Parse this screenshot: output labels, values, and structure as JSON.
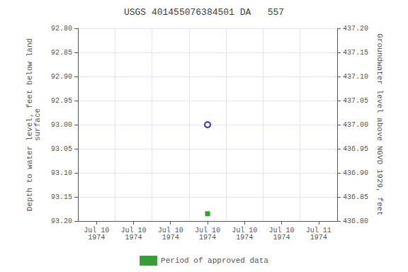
{
  "chart_data": {
    "type": "scatter",
    "title": "USGS 401455076384501 DA   557",
    "ylabel": "Depth to water level, feet below land\nsurface",
    "y2label": "Groundwater level above NGVD 1929, feet",
    "categories": [
      "Jul 10\n1974",
      "Jul 10\n1974",
      "Jul 10\n1974",
      "Jul 10\n1974",
      "Jul 10\n1974",
      "Jul 10\n1974",
      "Jul 11\n1974"
    ],
    "series": [
      {
        "color": "#0000cc",
        "marker": "open circle",
        "values": [
          null,
          null,
          null,
          93.0,
          null,
          null,
          null
        ]
      },
      {
        "name": "Period of approved data",
        "color": "#008800",
        "marker": "square",
        "values": [
          null,
          null,
          null,
          93.185,
          null,
          null,
          null
        ]
      }
    ],
    "ylim": [
      93.2,
      92.8
    ],
    "yticks": [
      {
        "value": 92.8,
        "label": "92.80"
      },
      {
        "value": 92.85,
        "label": "92.85"
      },
      {
        "value": 92.9,
        "label": "92.90"
      },
      {
        "value": 92.95,
        "label": "92.95"
      },
      {
        "value": 93.0,
        "label": "93.00"
      },
      {
        "value": 93.05,
        "label": "93.05"
      },
      {
        "value": 93.1,
        "label": "93.10"
      },
      {
        "value": 93.15,
        "label": "93.15"
      },
      {
        "value": 93.2,
        "label": "93.20"
      }
    ],
    "y2lim": [
      436.8,
      437.2
    ],
    "y2ticks": [
      {
        "value": 436.8,
        "label": "436.80"
      },
      {
        "value": 436.85,
        "label": "436.85"
      },
      {
        "value": 436.9,
        "label": "436.90"
      },
      {
        "value": 436.95,
        "label": "436.95"
      },
      {
        "value": 437.0,
        "label": "437.00"
      },
      {
        "value": 437.05,
        "label": "437.05"
      },
      {
        "value": 437.1,
        "label": "437.10"
      },
      {
        "value": 437.15,
        "label": "437.15"
      },
      {
        "value": 437.2,
        "label": "437.20"
      }
    ],
    "grid": true,
    "legend": "bottom"
  }
}
